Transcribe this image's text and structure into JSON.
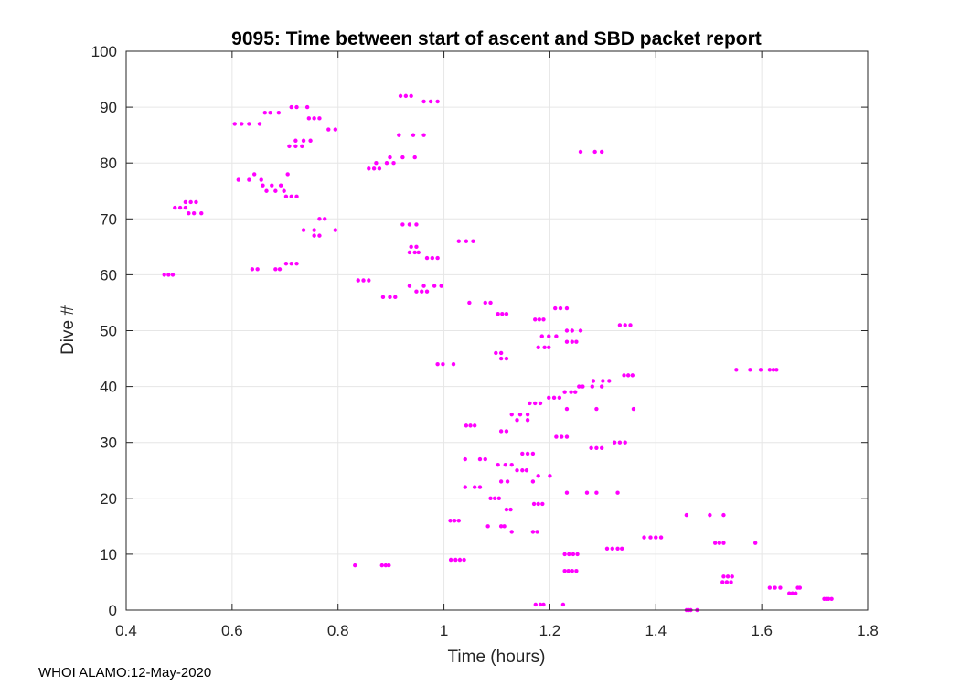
{
  "footer": "WHOI ALAMO:12-May-2020",
  "chart_data": {
    "type": "scatter",
    "title": "9095: Time between start of ascent and SBD packet report",
    "xlabel": "Time (hours)",
    "ylabel": "Dive #",
    "xlim": [
      0.4,
      1.8
    ],
    "ylim": [
      0,
      100
    ],
    "xticks": [
      "0.4",
      "0.6",
      "0.8",
      "1",
      "1.2",
      "1.4",
      "1.6",
      "1.8"
    ],
    "yticks": [
      "0",
      "10",
      "20",
      "30",
      "40",
      "50",
      "60",
      "70",
      "80",
      "90",
      "100"
    ],
    "grid": true,
    "marker_color": "#ff00ff",
    "series": [
      {
        "points": [
          [
            1.458,
            0
          ],
          [
            1.462,
            0
          ],
          [
            1.466,
            0
          ],
          [
            1.478,
            0
          ],
          [
            1.173,
            1
          ],
          [
            1.182,
            1
          ],
          [
            1.188,
            1
          ],
          [
            1.225,
            1
          ],
          [
            1.718,
            2
          ],
          [
            1.722,
            2
          ],
          [
            1.726,
            2
          ],
          [
            1.732,
            2
          ],
          [
            1.652,
            3
          ],
          [
            1.658,
            3
          ],
          [
            1.664,
            3
          ],
          [
            1.615,
            4
          ],
          [
            1.625,
            4
          ],
          [
            1.635,
            4
          ],
          [
            1.668,
            4
          ],
          [
            1.672,
            4
          ],
          [
            1.526,
            5
          ],
          [
            1.534,
            5
          ],
          [
            1.542,
            5
          ],
          [
            1.528,
            6
          ],
          [
            1.536,
            6
          ],
          [
            1.544,
            6
          ],
          [
            1.228,
            7
          ],
          [
            1.235,
            7
          ],
          [
            1.242,
            7
          ],
          [
            1.25,
            7
          ],
          [
            0.832,
            8
          ],
          [
            0.883,
            8
          ],
          [
            0.89,
            8
          ],
          [
            0.896,
            8
          ],
          [
            1.013,
            9
          ],
          [
            1.022,
            9
          ],
          [
            1.03,
            9
          ],
          [
            1.038,
            9
          ],
          [
            1.228,
            10
          ],
          [
            1.236,
            10
          ],
          [
            1.244,
            10
          ],
          [
            1.252,
            10
          ],
          [
            1.308,
            11
          ],
          [
            1.318,
            11
          ],
          [
            1.328,
            11
          ],
          [
            1.336,
            11
          ],
          [
            1.512,
            12
          ],
          [
            1.52,
            12
          ],
          [
            1.528,
            12
          ],
          [
            1.588,
            12
          ],
          [
            1.378,
            13
          ],
          [
            1.39,
            13
          ],
          [
            1.4,
            13
          ],
          [
            1.41,
            13
          ],
          [
            1.128,
            14
          ],
          [
            1.168,
            14
          ],
          [
            1.176,
            14
          ],
          [
            1.083,
            15
          ],
          [
            1.108,
            15
          ],
          [
            1.114,
            15
          ],
          [
            1.012,
            16
          ],
          [
            1.02,
            16
          ],
          [
            1.028,
            16
          ],
          [
            1.458,
            17
          ],
          [
            1.502,
            17
          ],
          [
            1.528,
            17
          ],
          [
            1.118,
            18
          ],
          [
            1.126,
            18
          ],
          [
            1.17,
            19
          ],
          [
            1.178,
            19
          ],
          [
            1.186,
            19
          ],
          [
            1.088,
            20
          ],
          [
            1.096,
            20
          ],
          [
            1.104,
            20
          ],
          [
            1.232,
            21
          ],
          [
            1.27,
            21
          ],
          [
            1.288,
            21
          ],
          [
            1.328,
            21
          ],
          [
            1.04,
            22
          ],
          [
            1.058,
            22
          ],
          [
            1.068,
            22
          ],
          [
            1.108,
            23
          ],
          [
            1.12,
            23
          ],
          [
            1.168,
            23
          ],
          [
            1.178,
            24
          ],
          [
            1.2,
            24
          ],
          [
            1.138,
            25
          ],
          [
            1.148,
            25
          ],
          [
            1.156,
            25
          ],
          [
            1.102,
            26
          ],
          [
            1.116,
            26
          ],
          [
            1.128,
            26
          ],
          [
            1.04,
            27
          ],
          [
            1.068,
            27
          ],
          [
            1.078,
            27
          ],
          [
            1.148,
            28
          ],
          [
            1.158,
            28
          ],
          [
            1.168,
            28
          ],
          [
            1.278,
            29
          ],
          [
            1.288,
            29
          ],
          [
            1.298,
            29
          ],
          [
            1.322,
            30
          ],
          [
            1.332,
            30
          ],
          [
            1.342,
            30
          ],
          [
            1.212,
            31
          ],
          [
            1.222,
            31
          ],
          [
            1.232,
            31
          ],
          [
            1.108,
            32
          ],
          [
            1.118,
            32
          ],
          [
            1.042,
            33
          ],
          [
            1.05,
            33
          ],
          [
            1.058,
            33
          ],
          [
            1.138,
            34
          ],
          [
            1.158,
            34
          ],
          [
            1.128,
            35
          ],
          [
            1.144,
            35
          ],
          [
            1.158,
            35
          ],
          [
            1.232,
            36
          ],
          [
            1.288,
            36
          ],
          [
            1.358,
            36
          ],
          [
            1.162,
            37
          ],
          [
            1.172,
            37
          ],
          [
            1.182,
            37
          ],
          [
            1.198,
            38
          ],
          [
            1.208,
            38
          ],
          [
            1.218,
            38
          ],
          [
            1.228,
            39
          ],
          [
            1.24,
            39
          ],
          [
            1.248,
            39
          ],
          [
            1.255,
            40
          ],
          [
            1.262,
            40
          ],
          [
            1.28,
            40
          ],
          [
            1.298,
            40
          ],
          [
            1.282,
            41
          ],
          [
            1.3,
            41
          ],
          [
            1.312,
            41
          ],
          [
            1.34,
            42
          ],
          [
            1.348,
            42
          ],
          [
            1.356,
            42
          ],
          [
            1.552,
            43
          ],
          [
            1.578,
            43
          ],
          [
            1.598,
            43
          ],
          [
            1.615,
            43
          ],
          [
            1.622,
            43
          ],
          [
            1.628,
            43
          ],
          [
            0.988,
            44
          ],
          [
            0.998,
            44
          ],
          [
            1.018,
            44
          ],
          [
            1.108,
            45
          ],
          [
            1.118,
            45
          ],
          [
            1.098,
            46
          ],
          [
            1.108,
            46
          ],
          [
            1.178,
            47
          ],
          [
            1.19,
            47
          ],
          [
            1.198,
            47
          ],
          [
            1.232,
            48
          ],
          [
            1.242,
            48
          ],
          [
            1.25,
            48
          ],
          [
            1.185,
            49
          ],
          [
            1.198,
            49
          ],
          [
            1.212,
            49
          ],
          [
            1.232,
            50
          ],
          [
            1.242,
            50
          ],
          [
            1.258,
            50
          ],
          [
            1.332,
            51
          ],
          [
            1.342,
            51
          ],
          [
            1.352,
            51
          ],
          [
            1.172,
            52
          ],
          [
            1.18,
            52
          ],
          [
            1.188,
            52
          ],
          [
            1.102,
            53
          ],
          [
            1.11,
            53
          ],
          [
            1.118,
            53
          ],
          [
            1.21,
            54
          ],
          [
            1.22,
            54
          ],
          [
            1.232,
            54
          ],
          [
            1.048,
            55
          ],
          [
            1.078,
            55
          ],
          [
            1.088,
            55
          ],
          [
            0.885,
            56
          ],
          [
            0.898,
            56
          ],
          [
            0.908,
            56
          ],
          [
            0.948,
            57
          ],
          [
            0.958,
            57
          ],
          [
            0.968,
            57
          ],
          [
            0.935,
            58
          ],
          [
            0.962,
            58
          ],
          [
            0.982,
            58
          ],
          [
            0.995,
            58
          ],
          [
            0.838,
            59
          ],
          [
            0.848,
            59
          ],
          [
            0.858,
            59
          ],
          [
            0.472,
            60
          ],
          [
            0.48,
            60
          ],
          [
            0.488,
            60
          ],
          [
            0.638,
            61
          ],
          [
            0.648,
            61
          ],
          [
            0.682,
            61
          ],
          [
            0.69,
            61
          ],
          [
            0.702,
            62
          ],
          [
            0.712,
            62
          ],
          [
            0.722,
            62
          ],
          [
            0.968,
            63
          ],
          [
            0.978,
            63
          ],
          [
            0.988,
            63
          ],
          [
            0.935,
            64
          ],
          [
            0.945,
            64
          ],
          [
            0.952,
            64
          ],
          [
            0.938,
            65
          ],
          [
            0.948,
            65
          ],
          [
            1.028,
            66
          ],
          [
            1.042,
            66
          ],
          [
            1.055,
            66
          ],
          [
            0.755,
            67
          ],
          [
            0.765,
            67
          ],
          [
            0.735,
            68
          ],
          [
            0.755,
            68
          ],
          [
            0.795,
            68
          ],
          [
            0.922,
            69
          ],
          [
            0.935,
            69
          ],
          [
            0.948,
            69
          ],
          [
            0.765,
            70
          ],
          [
            0.775,
            70
          ],
          [
            0.518,
            71
          ],
          [
            0.528,
            71
          ],
          [
            0.542,
            71
          ],
          [
            0.492,
            72
          ],
          [
            0.502,
            72
          ],
          [
            0.512,
            72
          ],
          [
            0.512,
            73
          ],
          [
            0.522,
            73
          ],
          [
            0.532,
            73
          ],
          [
            0.702,
            74
          ],
          [
            0.712,
            74
          ],
          [
            0.722,
            74
          ],
          [
            0.665,
            75
          ],
          [
            0.682,
            75
          ],
          [
            0.698,
            75
          ],
          [
            0.658,
            76
          ],
          [
            0.675,
            76
          ],
          [
            0.692,
            76
          ],
          [
            0.612,
            77
          ],
          [
            0.632,
            77
          ],
          [
            0.655,
            77
          ],
          [
            0.642,
            78
          ],
          [
            0.705,
            78
          ],
          [
            0.858,
            79
          ],
          [
            0.868,
            79
          ],
          [
            0.878,
            79
          ],
          [
            0.872,
            80
          ],
          [
            0.892,
            80
          ],
          [
            0.905,
            80
          ],
          [
            0.898,
            81
          ],
          [
            0.922,
            81
          ],
          [
            0.945,
            81
          ],
          [
            1.258,
            82
          ],
          [
            1.285,
            82
          ],
          [
            1.298,
            82
          ],
          [
            0.708,
            83
          ],
          [
            0.72,
            83
          ],
          [
            0.732,
            83
          ],
          [
            0.72,
            84
          ],
          [
            0.735,
            84
          ],
          [
            0.748,
            84
          ],
          [
            0.915,
            85
          ],
          [
            0.942,
            85
          ],
          [
            0.962,
            85
          ],
          [
            0.782,
            86
          ],
          [
            0.795,
            86
          ],
          [
            0.605,
            87
          ],
          [
            0.618,
            87
          ],
          [
            0.632,
            87
          ],
          [
            0.652,
            87
          ],
          [
            0.745,
            88
          ],
          [
            0.755,
            88
          ],
          [
            0.765,
            88
          ],
          [
            0.662,
            89
          ],
          [
            0.672,
            89
          ],
          [
            0.688,
            89
          ],
          [
            0.712,
            90
          ],
          [
            0.722,
            90
          ],
          [
            0.742,
            90
          ],
          [
            0.962,
            91
          ],
          [
            0.975,
            91
          ],
          [
            0.988,
            91
          ],
          [
            0.918,
            92
          ],
          [
            0.928,
            92
          ],
          [
            0.938,
            92
          ]
        ]
      }
    ]
  }
}
